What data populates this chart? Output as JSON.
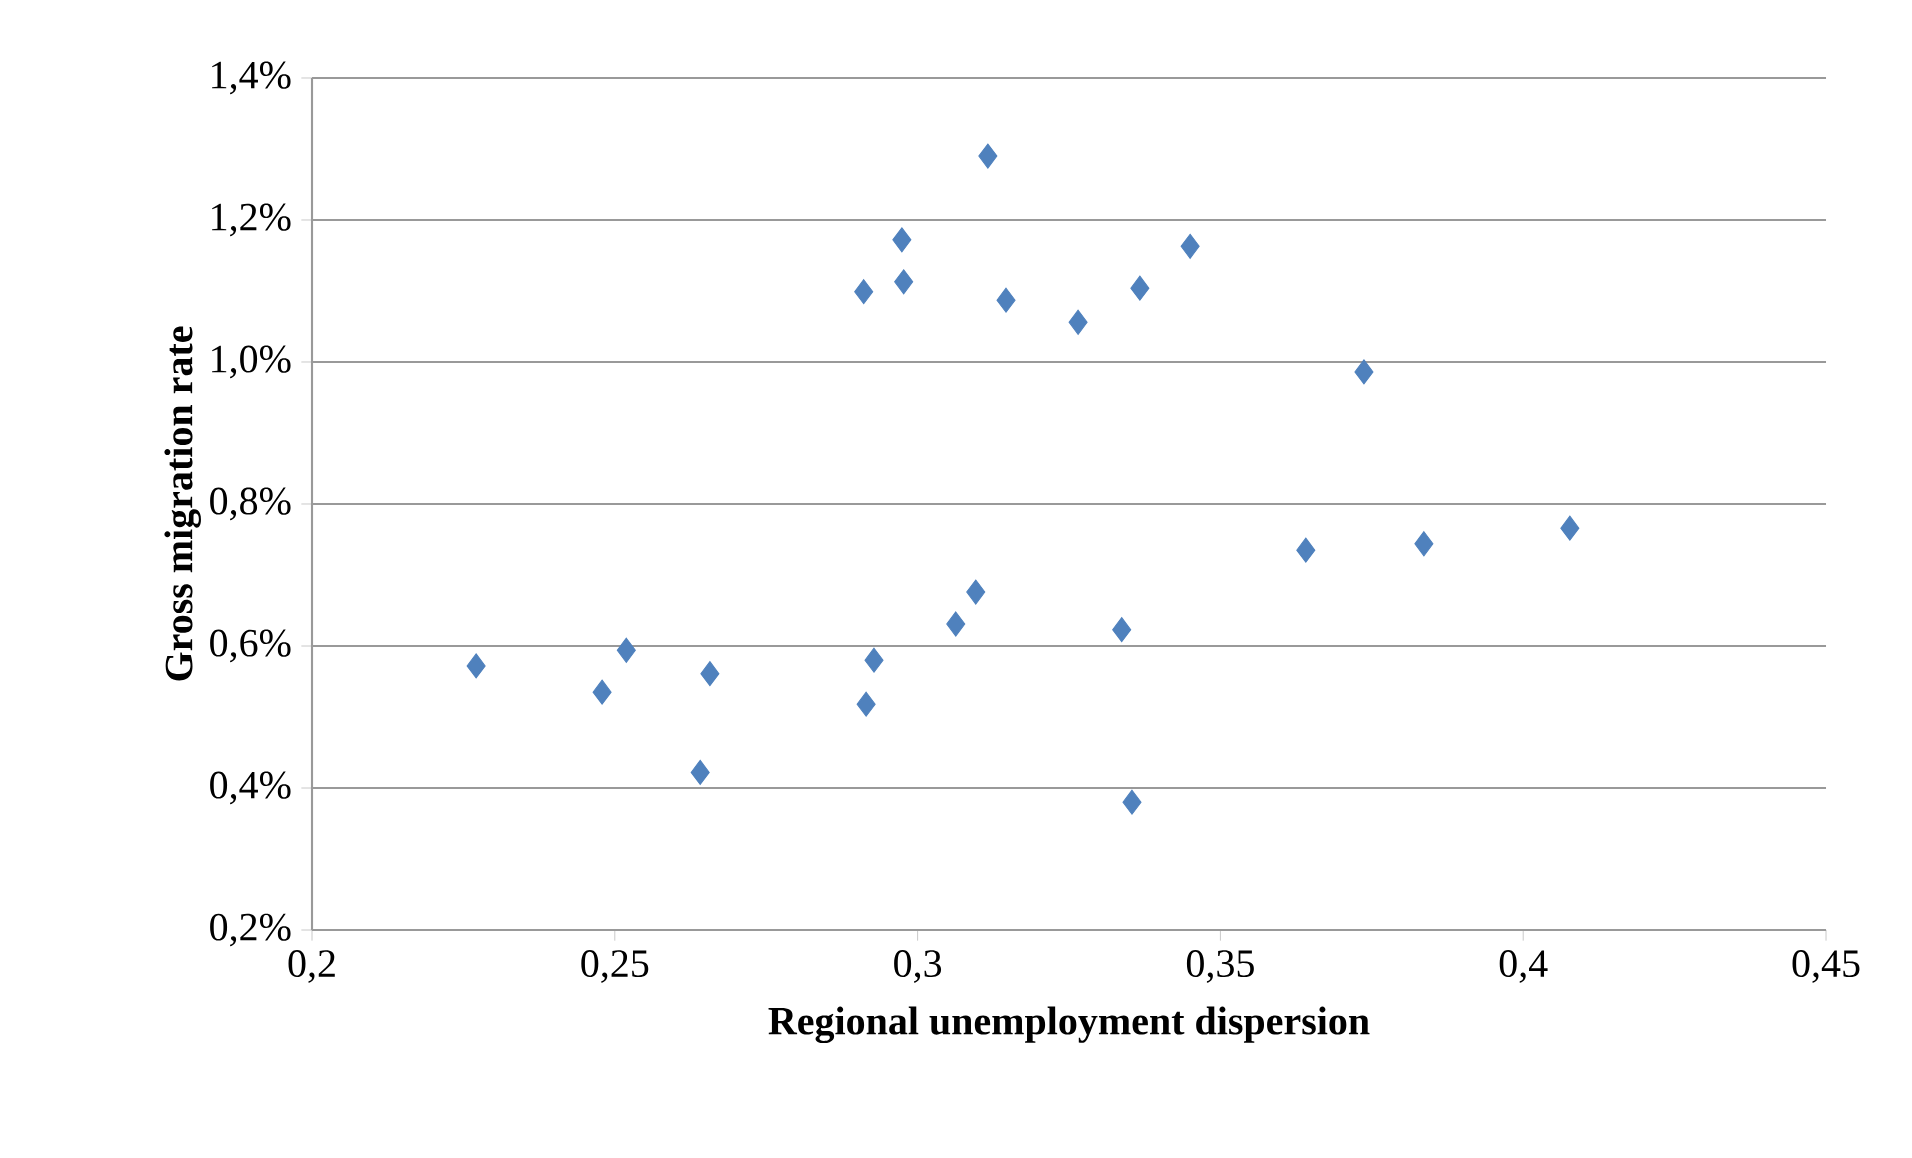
{
  "chart_data": {
    "type": "scatter",
    "xlabel": "Regional unemployment dispersion",
    "ylabel": "Gross migration rate",
    "x": [
      0.2271,
      0.2479,
      0.2519,
      0.2641,
      0.2657,
      0.2911,
      0.2974,
      0.2977,
      0.2915,
      0.2928,
      0.3116,
      0.3146,
      0.3063,
      0.3096,
      0.3265,
      0.3367,
      0.345,
      0.3337,
      0.3354,
      0.3641,
      0.3737,
      0.3836,
      0.4077
    ],
    "values": [
      0.572,
      0.535,
      0.594,
      0.422,
      0.561,
      1.099,
      1.172,
      1.113,
      0.518,
      0.58,
      1.29,
      1.087,
      0.631,
      0.676,
      1.056,
      1.104,
      1.163,
      0.623,
      0.38,
      0.735,
      0.986,
      0.744,
      0.766
    ],
    "color": "#4f81bd",
    "marker": "diamond",
    "grid": "y",
    "xlim": [
      0.2,
      0.45
    ],
    "xticks": [
      {
        "value": 0.2,
        "label": "0,2"
      },
      {
        "value": 0.25,
        "label": "0,25"
      },
      {
        "value": 0.3,
        "label": "0,3"
      },
      {
        "value": 0.35,
        "label": "0,35"
      },
      {
        "value": 0.4,
        "label": "0,4"
      },
      {
        "value": 0.45,
        "label": "0,45"
      }
    ],
    "ylim": [
      0.2,
      1.4
    ],
    "yticks": [
      {
        "value": 0.2,
        "label": "0,2%"
      },
      {
        "value": 0.4,
        "label": "0,4%"
      },
      {
        "value": 0.6,
        "label": "0,6%"
      },
      {
        "value": 0.8,
        "label": "0,8%"
      },
      {
        "value": 1.0,
        "label": "1,0%"
      },
      {
        "value": 1.2,
        "label": "1,2%"
      },
      {
        "value": 1.4,
        "label": "1,4%"
      }
    ]
  }
}
